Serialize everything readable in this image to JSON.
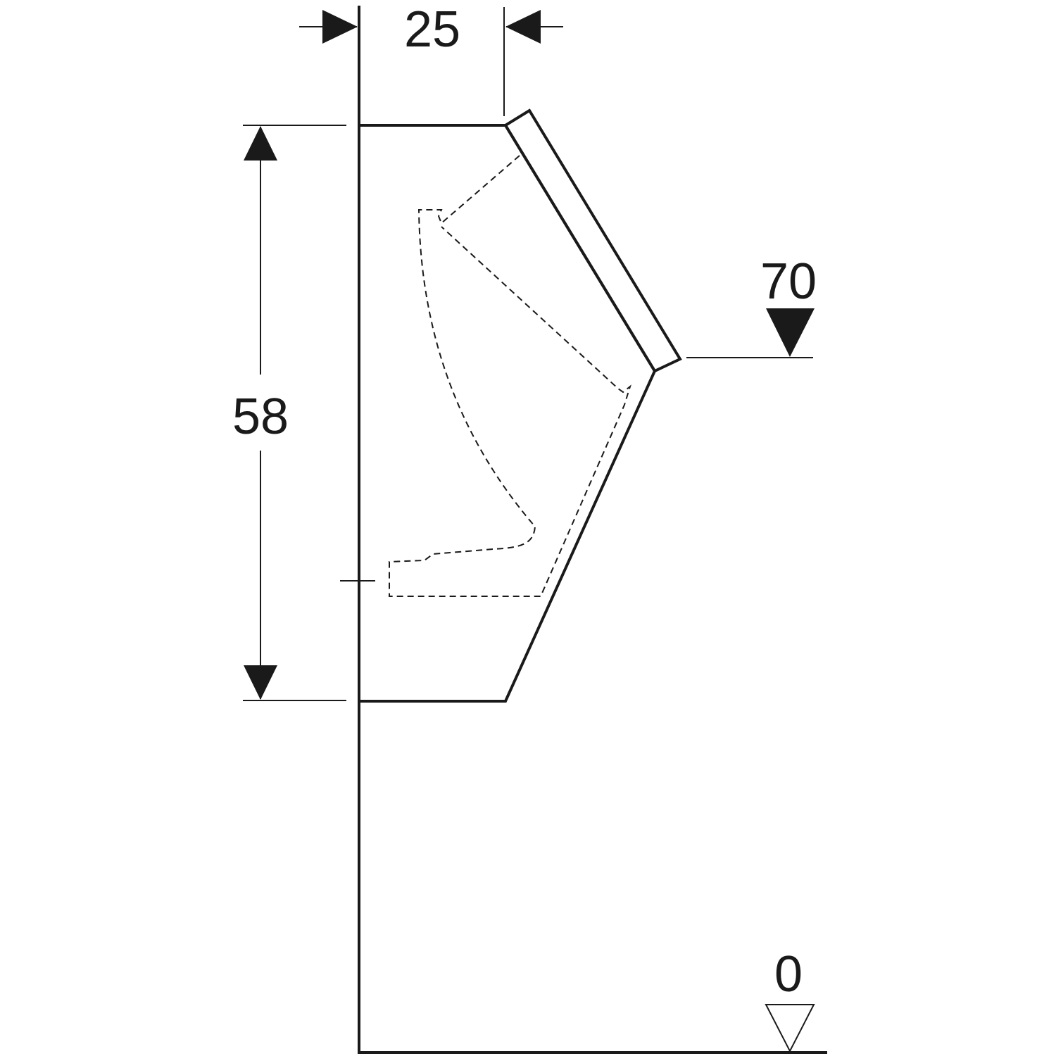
{
  "drawing": {
    "type": "urinal side elevation dimension drawing",
    "colors": {
      "line": "#1a1a1a",
      "background": "#ffffff"
    }
  },
  "dimensions": {
    "depth": "25",
    "height": "58",
    "rim_level": "70",
    "floor_level": "0"
  }
}
